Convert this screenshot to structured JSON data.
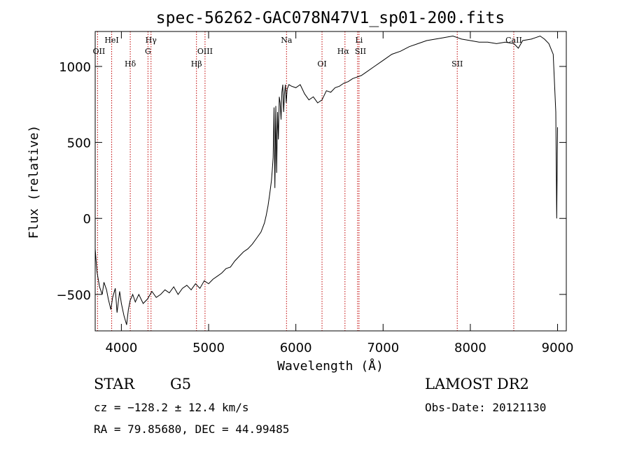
{
  "chart_data": {
    "type": "line",
    "title": "spec-56262-GAC078N47V1_sp01-200.fits",
    "xlabel": "Wavelength (Å)",
    "ylabel": "Flux (relative)",
    "xlim": [
      3700,
      9100
    ],
    "ylim": [
      -740,
      1230
    ],
    "x_ticks": [
      4000,
      5000,
      6000,
      7000,
      8000,
      9000
    ],
    "y_ticks": [
      -500,
      0,
      500,
      1000
    ],
    "grid": false,
    "series": [
      {
        "x": [
          3700,
          3720,
          3750,
          3780,
          3800,
          3830,
          3850,
          3880,
          3900,
          3930,
          3950,
          3980,
          4000,
          4030,
          4060,
          4080,
          4100,
          4130,
          4160,
          4200,
          4250,
          4300,
          4350,
          4400,
          4450,
          4500,
          4550,
          4600,
          4650,
          4700,
          4750,
          4800,
          4850,
          4900,
          4950,
          5000,
          5050,
          5100,
          5150,
          5200,
          5250,
          5300,
          5350,
          5400,
          5450,
          5500,
          5550,
          5600,
          5620,
          5640,
          5660,
          5680,
          5700,
          5720,
          5730,
          5740,
          5750,
          5760,
          5770,
          5780,
          5790,
          5800,
          5810,
          5820,
          5830,
          5840,
          5850,
          5860,
          5870,
          5880,
          5890,
          5900,
          5920,
          5950,
          6000,
          6050,
          6100,
          6150,
          6200,
          6250,
          6300,
          6350,
          6400,
          6450,
          6500,
          6550,
          6600,
          6650,
          6700,
          6750,
          6800,
          6900,
          7000,
          7100,
          7200,
          7300,
          7400,
          7500,
          7600,
          7700,
          7800,
          7850,
          7900,
          8000,
          8100,
          8200,
          8300,
          8400,
          8500,
          8550,
          8600,
          8700,
          8800,
          8850,
          8900,
          8950,
          8980,
          8990,
          9000
        ],
        "values": [
          -200,
          -350,
          -450,
          -500,
          -420,
          -470,
          -530,
          -600,
          -520,
          -460,
          -620,
          -480,
          -560,
          -640,
          -700,
          -600,
          -540,
          -500,
          -550,
          -500,
          -560,
          -530,
          -480,
          -520,
          -500,
          -470,
          -490,
          -450,
          -500,
          -460,
          -440,
          -470,
          -430,
          -460,
          -410,
          -430,
          -400,
          -380,
          -360,
          -330,
          -320,
          -280,
          -250,
          -220,
          -200,
          -170,
          -130,
          -90,
          -60,
          -30,
          20,
          80,
          160,
          250,
          320,
          400,
          730,
          200,
          740,
          300,
          700,
          520,
          800,
          760,
          650,
          830,
          880,
          700,
          820,
          880,
          760,
          850,
          880,
          870,
          860,
          880,
          820,
          780,
          800,
          760,
          780,
          840,
          830,
          860,
          870,
          890,
          900,
          920,
          930,
          940,
          960,
          1000,
          1040,
          1080,
          1100,
          1130,
          1150,
          1170,
          1180,
          1190,
          1200,
          1190,
          1180,
          1170,
          1160,
          1160,
          1150,
          1160,
          1150,
          1120,
          1170,
          1180,
          1200,
          1180,
          1150,
          1080,
          700,
          0,
          600
        ]
      }
    ],
    "line_markers": [
      {
        "label": "OII",
        "wavelength": 3727
      },
      {
        "label": "HeI",
        "wavelength": 3889
      },
      {
        "label": "Hδ",
        "wavelength": 4102
      },
      {
        "label": "Hγ",
        "wavelength": 4340
      },
      {
        "label": "G",
        "wavelength": 4305
      },
      {
        "label": "Hβ",
        "wavelength": 4861
      },
      {
        "label": "OIII",
        "wavelength": 4959
      },
      {
        "label": "Na",
        "wavelength": 5893
      },
      {
        "label": "OI",
        "wavelength": 6300
      },
      {
        "label": "Hα",
        "wavelength": 6563
      },
      {
        "label": "Li",
        "wavelength": 6708
      },
      {
        "label": "SII",
        "wavelength": 6724
      },
      {
        "label": "SII",
        "wavelength": 7850
      },
      {
        "label": "CaII",
        "wavelength": 8498
      }
    ],
    "colors": {
      "spectrum": "#000000",
      "markers": "#c00000"
    }
  },
  "info": {
    "object_type": "STAR",
    "object_class": "G5",
    "survey": "LAMOST DR2",
    "cz": "cz = −128.2 ± 12.4 km/s",
    "obs_date": "Obs-Date: 20121130",
    "radec": "RA =  79.85680, DEC =  44.99485"
  }
}
